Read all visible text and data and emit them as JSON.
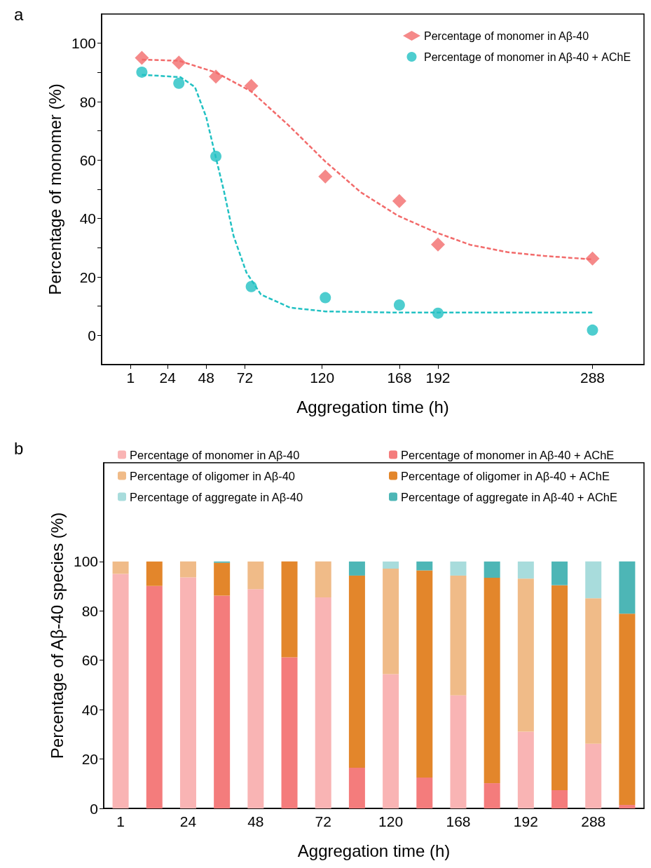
{
  "chart_data": [
    {
      "type": "scatter",
      "annotations": [
        "a"
      ],
      "xlabel": "Aggregation time (h)",
      "ylabel": "Percentage of monomer (%)",
      "xlim": [
        -17,
        320
      ],
      "xticks": [
        1,
        24,
        48,
        72,
        120,
        168,
        192,
        288
      ],
      "ylim": [
        -10,
        110
      ],
      "yticks": [
        0,
        {
          "value": 10,
          "label": null
        },
        20,
        {
          "value": 30,
          "label": null
        },
        40,
        {
          "value": 50,
          "label": null
        },
        60,
        {
          "value": 70,
          "label": null
        },
        80,
        {
          "value": 90,
          "label": null
        },
        100
      ],
      "legend": "top right",
      "series": [
        {
          "name": "Percentage of monomer in Aβ-40",
          "color": "#f26b6b",
          "marker": "diamond",
          "x": [
            8,
            31,
            54,
            76,
            122,
            168,
            192,
            288
          ],
          "values": [
            95,
            93.4,
            88.6,
            85.4,
            54.4,
            46,
            31.1,
            26.3
          ]
        },
        {
          "name": "Percentage of monomer in Aβ-40 + AChE",
          "color": "#22c1c3",
          "marker": "circle",
          "x": [
            8,
            31,
            54,
            76,
            122,
            168,
            192,
            288
          ],
          "values": [
            90.1,
            86.3,
            61.3,
            16.7,
            12.9,
            10.4,
            7.6,
            1.8
          ]
        },
        {
          "type": "line",
          "color": "#f26b6b",
          "marker": "none",
          "line_style": "dashed",
          "x": [
            8,
            31,
            54,
            76,
            99,
            122,
            144,
            167,
            190,
            212,
            235,
            258,
            288
          ],
          "values": [
            94.4,
            94,
            90,
            83.5,
            72,
            59.5,
            49,
            41,
            35.4,
            31,
            28.5,
            27.2,
            26
          ]
        },
        {
          "type": "line",
          "color": "#22c1c3",
          "marker": "none",
          "line_style": "dashed",
          "x": [
            8,
            32,
            41,
            48,
            53.5,
            59,
            65,
            73,
            82,
            100,
            122,
            168,
            288
          ],
          "values": [
            89.2,
            88.4,
            85,
            74.7,
            62,
            49.4,
            34,
            21.5,
            14,
            9.5,
            8.2,
            7.8,
            7.8
          ]
        }
      ]
    },
    {
      "type": "bar",
      "stacked": true,
      "annotations": [
        "b"
      ],
      "xlabel": "Aggregation time (h)",
      "ylabel": "Percentage of Aβ-40 species (%)",
      "categories": [
        "1",
        null,
        "24",
        null,
        "48",
        null,
        "72",
        null,
        "120",
        null,
        "168",
        null,
        "192",
        null,
        "288",
        null
      ],
      "ylim": [
        0,
        140
      ],
      "yticks": [
        0,
        20,
        40,
        60,
        80,
        100
      ],
      "legend": "top",
      "series": [
        {
          "name": "Percentage of monomer in Aβ-40",
          "color": "#f9b4b4",
          "values": [
            95,
            null,
            93.6,
            null,
            88.8,
            null,
            85.5,
            null,
            54.4,
            null,
            45.8,
            null,
            31.1,
            null,
            26.2,
            null
          ]
        },
        {
          "name": "Percentage of monomer in Aβ-40 + AChE",
          "color": "#f47c7c",
          "values": [
            null,
            90.1,
            null,
            86.2,
            null,
            61.2,
            null,
            16.5,
            null,
            12.5,
            null,
            10.2,
            null,
            7.4,
            null,
            1.4
          ]
        },
        {
          "name": "Percentage of oligomer in Aβ-40",
          "color": "#f0bb88",
          "values": [
            5,
            null,
            6.4,
            null,
            11.2,
            null,
            14.5,
            null,
            42.7,
            null,
            48.5,
            null,
            62,
            null,
            58.9,
            null
          ]
        },
        {
          "name": "Percentage of oligomer in Aβ-40 + AChE",
          "color": "#e3862b",
          "values": [
            null,
            9.9,
            null,
            13.3,
            null,
            38.8,
            null,
            77.8,
            null,
            83.9,
            null,
            83.2,
            null,
            83,
            null,
            77.5
          ]
        },
        {
          "name": "Percentage of aggregate in Aβ-40",
          "color": "#a8dcdc",
          "values": [
            0,
            null,
            0,
            null,
            0,
            null,
            0,
            null,
            2.9,
            null,
            5.7,
            null,
            6.9,
            null,
            14.9,
            null
          ]
        },
        {
          "name": "Percentage of aggregate in Aβ-40 + AChE",
          "color": "#4db6b6",
          "values": [
            null,
            0,
            null,
            0.5,
            null,
            0,
            null,
            5.7,
            null,
            3.6,
            null,
            6.6,
            null,
            9.6,
            null,
            21.1
          ]
        }
      ]
    }
  ]
}
